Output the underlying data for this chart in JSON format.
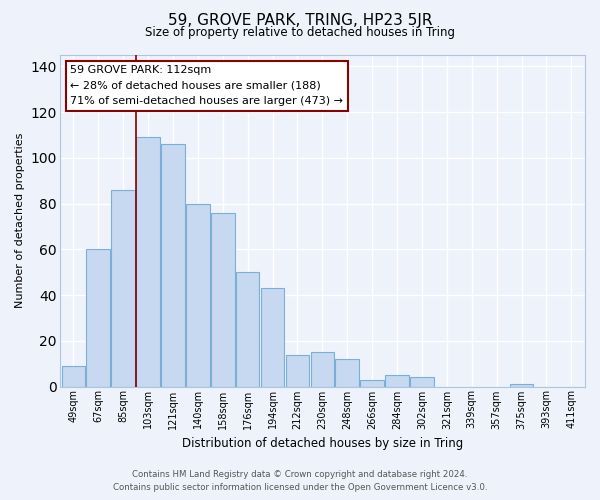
{
  "title": "59, GROVE PARK, TRING, HP23 5JR",
  "subtitle": "Size of property relative to detached houses in Tring",
  "xlabel": "Distribution of detached houses by size in Tring",
  "ylabel": "Number of detached properties",
  "bar_labels": [
    "49sqm",
    "67sqm",
    "85sqm",
    "103sqm",
    "121sqm",
    "140sqm",
    "158sqm",
    "176sqm",
    "194sqm",
    "212sqm",
    "230sqm",
    "248sqm",
    "266sqm",
    "284sqm",
    "302sqm",
    "321sqm",
    "339sqm",
    "357sqm",
    "375sqm",
    "393sqm",
    "411sqm"
  ],
  "bar_values": [
    9,
    60,
    86,
    109,
    106,
    80,
    76,
    50,
    43,
    14,
    15,
    12,
    3,
    5,
    4,
    0,
    0,
    0,
    1,
    0,
    0
  ],
  "bar_color": "#c6d9f0",
  "bar_edge_color": "#7bafd4",
  "vline_x_index": 3,
  "vline_color": "#8b0000",
  "annotation_title": "59 GROVE PARK: 112sqm",
  "annotation_line1": "← 28% of detached houses are smaller (188)",
  "annotation_line2": "71% of semi-detached houses are larger (473) →",
  "annotation_box_color": "#ffffff",
  "annotation_box_edge": "#8b0000",
  "ylim": [
    0,
    145
  ],
  "yticks": [
    0,
    20,
    40,
    60,
    80,
    100,
    120,
    140
  ],
  "footer1": "Contains HM Land Registry data © Crown copyright and database right 2024.",
  "footer2": "Contains public sector information licensed under the Open Government Licence v3.0.",
  "bg_color": "#eef3fb",
  "grid_color": "#ffffff"
}
